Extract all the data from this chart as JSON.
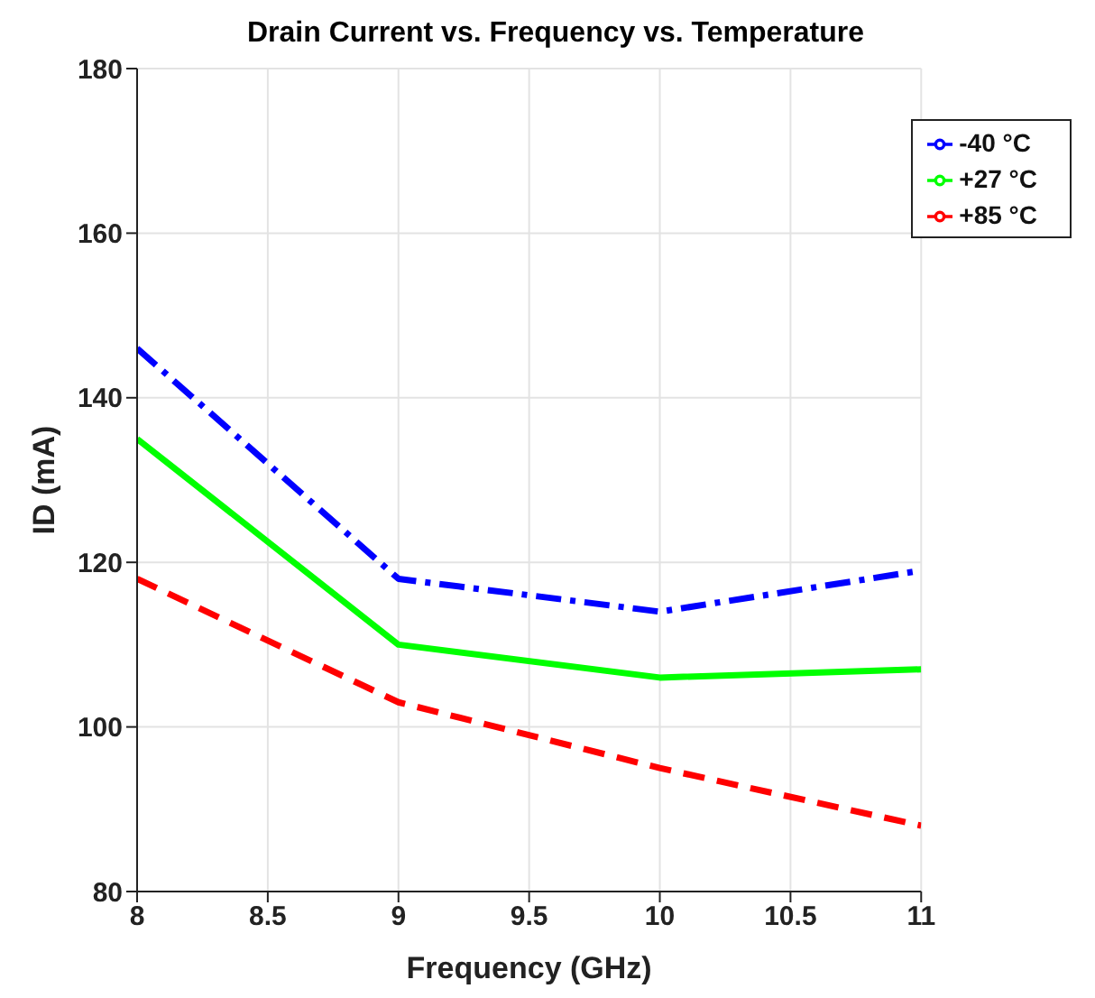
{
  "chart_data": {
    "type": "line",
    "title": "Drain Current vs. Frequency vs. Temperature",
    "xlabel": "Frequency (GHz)",
    "ylabel": "ID (mA)",
    "x": [
      8,
      9,
      10,
      11
    ],
    "series": [
      {
        "name": "-40 °C",
        "color": "#0000ff",
        "values": [
          146,
          118,
          114,
          119
        ],
        "line_style": "dashdot"
      },
      {
        "name": "+27 °C",
        "color": "#00ff00",
        "values": [
          135,
          110,
          106,
          107
        ],
        "line_style": "solid"
      },
      {
        "name": "+85 °C",
        "color": "#ff0000",
        "values": [
          118,
          103,
          95,
          88
        ],
        "line_style": "dashed"
      }
    ],
    "xlim": [
      8,
      11
    ],
    "xticks": [
      8,
      8.5,
      9,
      9.5,
      10,
      10.5,
      11
    ],
    "ylim": [
      80,
      180
    ],
    "yticks": [
      80,
      100,
      120,
      140,
      160,
      180
    ],
    "grid": true,
    "legend": "top right",
    "marker": "none"
  }
}
